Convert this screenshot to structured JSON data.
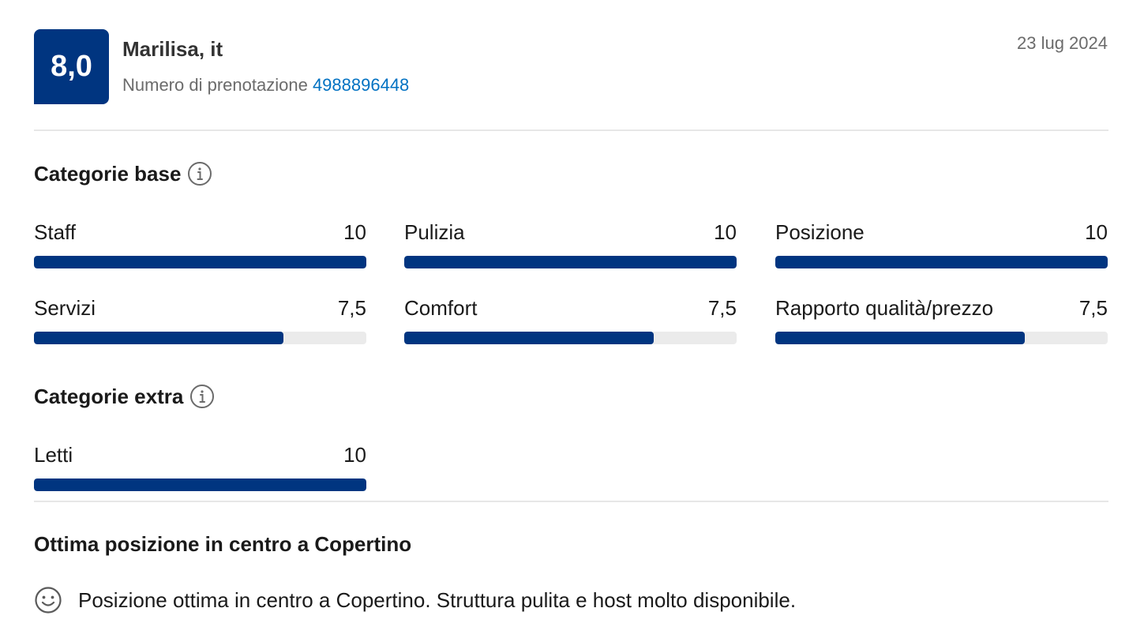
{
  "review": {
    "score": "8,0",
    "reviewer": "Marilisa, it",
    "booking_label": "Numero di prenotazione",
    "booking_number": "4988896448",
    "date": "23 lug 2024",
    "title": "Ottima posizione in centro a Copertino",
    "positive_text": "Posizione ottima in centro a Copertino. Struttura pulita e host molto disponibile."
  },
  "categories_base": {
    "heading": "Categorie base",
    "items": [
      {
        "label": "Staff",
        "score": "10",
        "fraction": 1.0
      },
      {
        "label": "Pulizia",
        "score": "10",
        "fraction": 1.0
      },
      {
        "label": "Posizione",
        "score": "10",
        "fraction": 1.0
      },
      {
        "label": "Servizi",
        "score": "7,5",
        "fraction": 0.75
      },
      {
        "label": "Comfort",
        "score": "7,5",
        "fraction": 0.75
      },
      {
        "label": "Rapporto qualità/prezzo",
        "score": "7,5",
        "fraction": 0.75
      }
    ]
  },
  "categories_extra": {
    "heading": "Categorie extra",
    "items": [
      {
        "label": "Letti",
        "score": "10",
        "fraction": 1.0
      }
    ]
  },
  "icons": {
    "info": "info-icon",
    "positive": "smile-icon"
  },
  "colors": {
    "brand": "#003580",
    "link": "#0071c2",
    "track": "#ebebeb"
  }
}
